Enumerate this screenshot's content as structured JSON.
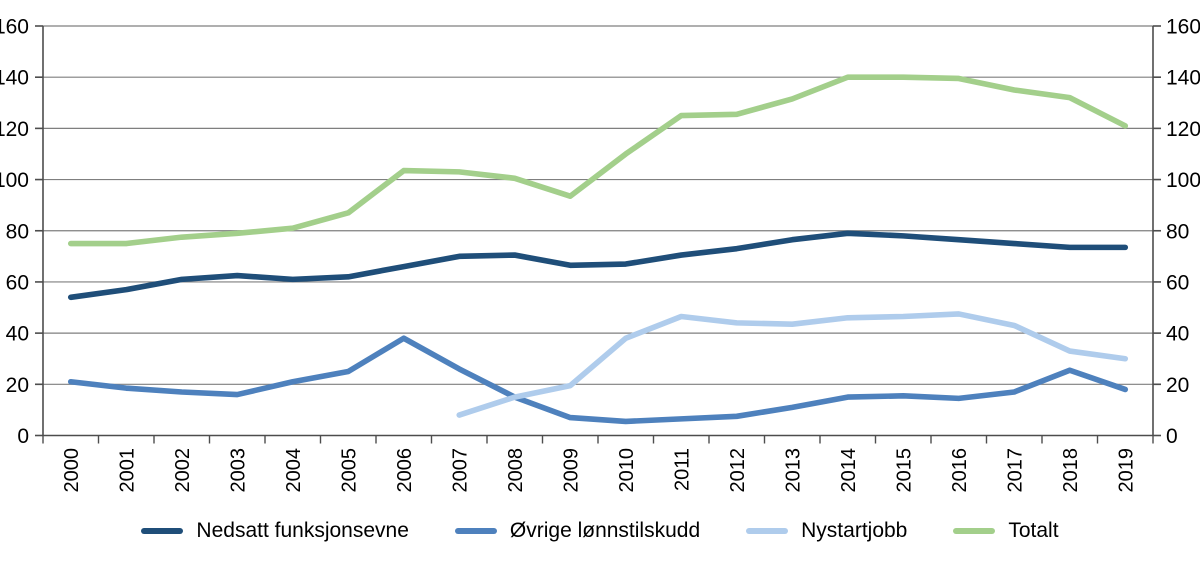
{
  "chart_data": {
    "type": "line",
    "title": "",
    "x": [
      "2000",
      "2001",
      "2002",
      "2003",
      "2004",
      "2005",
      "2006",
      "2007",
      "2008",
      "2009",
      "2010",
      "2011",
      "2012",
      "2013",
      "2014",
      "2015",
      "2016",
      "2017",
      "2018",
      "2019"
    ],
    "series": [
      {
        "name": "Nedsatt funksjonsevne",
        "color": "#1F4E79",
        "values": [
          54,
          57,
          61,
          62.5,
          61,
          62,
          66,
          70,
          70.5,
          66.5,
          67,
          70.5,
          73,
          76.5,
          79,
          78,
          76.5,
          75,
          73.5,
          73.5
        ]
      },
      {
        "name": "Øvrige lønnstilskudd",
        "color": "#4E81BD",
        "values": [
          21,
          18.5,
          17,
          16,
          21,
          25,
          38,
          26,
          15,
          7,
          5.5,
          6.5,
          7.5,
          11,
          15,
          15.5,
          14.5,
          17,
          25.5,
          18
        ]
      },
      {
        "name": "Nystartjobb",
        "color": "#AFCCEC",
        "values": [
          null,
          null,
          null,
          null,
          null,
          null,
          null,
          8,
          15,
          19.5,
          38,
          46.5,
          44,
          43.5,
          46,
          46.5,
          47.5,
          43,
          33,
          30
        ]
      },
      {
        "name": "Totalt",
        "color": "#A3CF8B",
        "values": [
          75,
          75,
          77.5,
          79,
          81,
          87,
          103.5,
          103,
          100.5,
          93.5,
          110,
          125,
          125.5,
          131.5,
          140,
          140,
          139.5,
          135,
          132,
          121
        ]
      }
    ],
    "y_axis": {
      "min": 0,
      "max": 160,
      "step": 20,
      "tick_labels": [
        "0",
        "20",
        "40",
        "60",
        "80",
        "100",
        "120",
        "140",
        "160"
      ],
      "sides": "both"
    },
    "grid": true,
    "legend_position": "bottom",
    "colors": {
      "gridline": "#7F7F7F",
      "axis": "#4D4D4D",
      "background": "#FFFFFF"
    }
  }
}
